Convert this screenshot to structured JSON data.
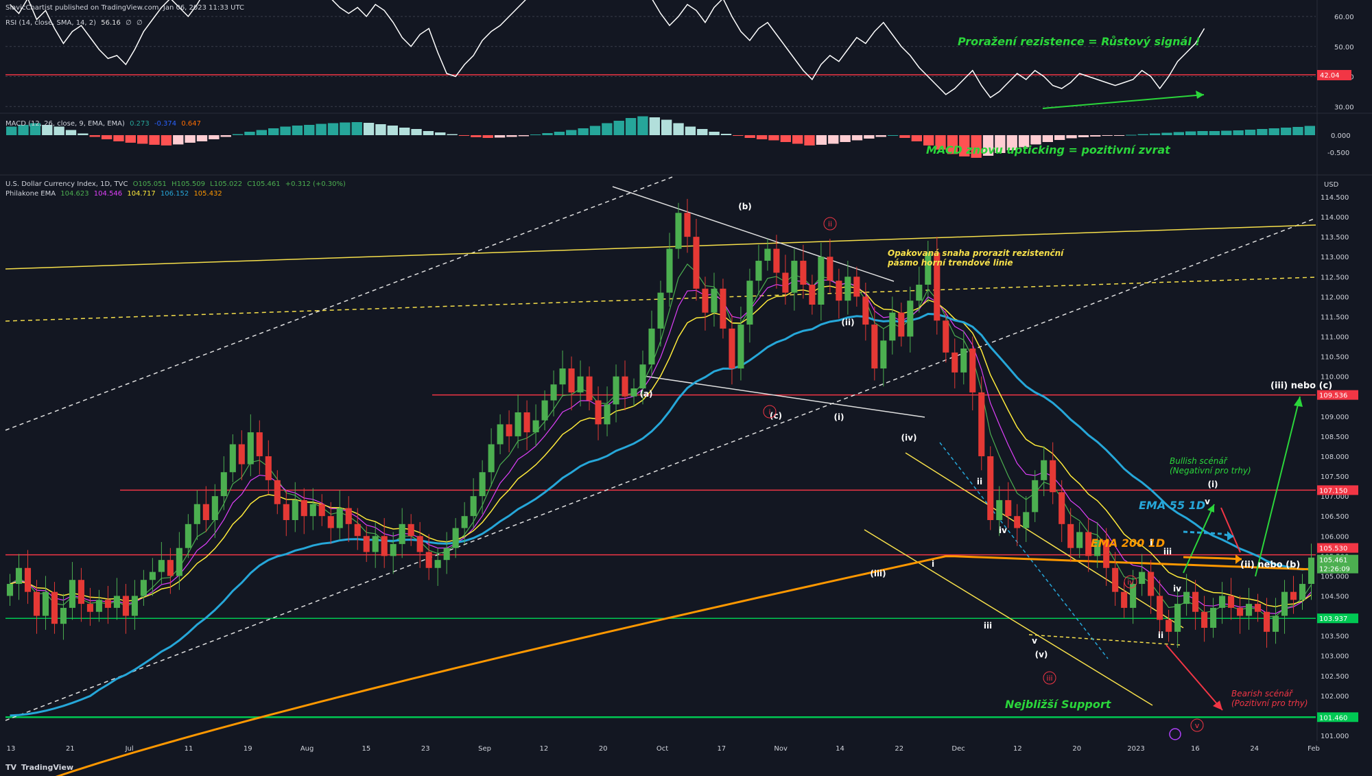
{
  "publisher": "SlavicChartist published on TradingView.com, Jan 06, 2023 11:33 UTC",
  "footer": {
    "logo": "TV",
    "label": "TradingView"
  },
  "colors": {
    "background": "#131722",
    "up": "#4caf50",
    "down": "#e53935",
    "ema_fast": "#4caf50",
    "ema_mid": "#e040fb",
    "ema_slow": "#ffeb3b",
    "ema55": "#26a7d9",
    "ema200": "#ff9800",
    "support_line": "#00c853",
    "resistance_line": "#f23645",
    "trend_yellow": "#f7e04b",
    "note_green": "#2bd63b",
    "note_red": "#f23645"
  },
  "rsi": {
    "legend": [
      "RSI (14, close, SMA, 14, 2)",
      "56.16",
      "∅",
      "∅"
    ],
    "scale": [
      60.0,
      50.0,
      40.0,
      30.0
    ],
    "current_label": "42.04",
    "values": [
      64,
      61,
      66,
      59,
      62,
      56,
      51,
      55,
      57,
      53,
      49,
      46,
      47,
      44,
      49,
      55,
      59,
      63,
      66,
      63,
      60,
      64,
      69,
      70,
      68,
      71,
      72,
      70,
      73,
      71,
      69,
      72,
      70,
      74,
      71,
      69,
      66,
      63,
      61,
      63,
      60,
      64,
      62,
      58,
      53,
      50,
      54,
      56,
      48,
      41,
      40,
      44,
      47,
      52,
      55,
      57,
      60,
      63,
      66,
      68,
      70,
      73,
      75,
      78,
      80,
      83,
      87,
      84,
      82,
      78,
      74,
      70,
      66,
      61,
      57,
      60,
      64,
      62,
      58,
      63,
      66,
      60,
      55,
      52,
      56,
      58,
      54,
      50,
      46,
      42,
      39,
      44,
      47,
      45,
      49,
      53,
      51,
      55,
      58,
      54,
      50,
      47,
      43,
      40,
      37,
      34,
      36,
      39,
      42,
      37,
      33,
      35,
      38,
      41,
      39,
      42,
      40,
      37,
      36,
      38,
      41,
      40,
      39,
      38,
      37,
      38,
      39,
      42,
      40,
      36,
      40,
      45,
      48,
      51,
      56
    ],
    "annotation": "Proražení rezistence = Růstový signál !"
  },
  "macd": {
    "legend": [
      "MACD (12, 26, close, 9, EMA, EMA)",
      "0.273",
      "-0.374",
      "0.647"
    ],
    "scale": [
      "0.000",
      "-0.500"
    ],
    "hist": [
      0.25,
      0.3,
      0.35,
      0.3,
      0.25,
      0.15,
      0.05,
      -0.05,
      -0.12,
      -0.18,
      -0.22,
      -0.25,
      -0.28,
      -0.3,
      -0.27,
      -0.22,
      -0.18,
      -0.12,
      -0.05,
      0.03,
      0.1,
      0.15,
      0.2,
      0.25,
      0.28,
      0.3,
      0.33,
      0.35,
      0.37,
      0.38,
      0.36,
      0.32,
      0.28,
      0.22,
      0.18,
      0.12,
      0.08,
      0.03,
      -0.02,
      -0.06,
      -0.08,
      -0.07,
      -0.05,
      -0.03,
      0.02,
      0.06,
      0.1,
      0.15,
      0.2,
      0.27,
      0.35,
      0.42,
      0.5,
      0.55,
      0.52,
      0.45,
      0.35,
      0.25,
      0.18,
      0.1,
      0.04,
      -0.02,
      -0.08,
      -0.12,
      -0.15,
      -0.2,
      -0.25,
      -0.3,
      -0.28,
      -0.25,
      -0.2,
      -0.15,
      -0.1,
      -0.05,
      0.0,
      -0.08,
      -0.18,
      -0.3,
      -0.42,
      -0.55,
      -0.62,
      -0.66,
      -0.6,
      -0.52,
      -0.44,
      -0.35,
      -0.27,
      -0.2,
      -0.14,
      -0.09,
      -0.06,
      -0.04,
      -0.02,
      -0.01,
      0.01,
      0.03,
      0.05,
      0.07,
      0.09,
      0.11,
      0.12,
      0.12,
      0.13,
      0.14,
      0.16,
      0.18,
      0.2,
      0.22,
      0.24,
      0.27
    ],
    "annotation": "MACD znovu upticking = pozitivní zvrat"
  },
  "main": {
    "legend_title": [
      "U.S. Dollar Currency Index, 1D, TVC",
      "O105.051",
      "H105.509",
      "L105.022",
      "C105.461",
      "+0.312 (+0.30%)"
    ],
    "legend_ema": [
      "Philakone EMA",
      "104.623",
      "104.546",
      "104.717",
      "106.152",
      "105.432"
    ],
    "unit": "USD",
    "price_ticks": [
      "114.500",
      "114.000",
      "113.500",
      "113.000",
      "112.500",
      "112.000",
      "111.500",
      "111.000",
      "110.500",
      "110.000",
      "109.500",
      "109.000",
      "108.500",
      "108.000",
      "107.500",
      "107.000",
      "106.500",
      "106.000",
      "105.500",
      "105.000",
      "104.500",
      "104.000",
      "103.500",
      "103.000",
      "102.500",
      "102.000",
      "101.500",
      "101.000"
    ],
    "price_labels": [
      {
        "text": "109.536",
        "color": "#f23645"
      },
      {
        "text": "107.150",
        "color": "#f23645"
      },
      {
        "text": "105.530",
        "color": "#f23645"
      },
      {
        "text": "105.461",
        "color": "#4caf50"
      },
      {
        "text": "12:26:09",
        "color": "#4caf50"
      },
      {
        "text": "103.937",
        "color": "#00c853"
      },
      {
        "text": "101.460",
        "color": "#00c853"
      }
    ],
    "x_ticks": [
      "13",
      "21",
      "Jul",
      "11",
      "19",
      "Aug",
      "15",
      "23",
      "Sep",
      "12",
      "20",
      "Oct",
      "17",
      "Nov",
      "14",
      "22",
      "Dec",
      "12",
      "20",
      "2023",
      "16",
      "24",
      "Feb"
    ],
    "annotations": {
      "resistance_note_1": "Opakovaná snaha prorazit rezistenční",
      "resistance_note_2": "pásmo horní trendové linie",
      "bull_1": "Bullish scénář",
      "bull_2": "(Negativní pro trhy)",
      "bear_1": "Bearish scénář",
      "bear_2": "(Pozitivní pro trhy)",
      "ema55": "EMA 55 1D",
      "ema200": "EMA 200 1D",
      "support": "Nejbližší Support",
      "target_iii": "(iii) nebo (c)",
      "target_ii": "(ii) nebo (b)"
    },
    "wave_labels": [
      "(b)",
      "(a)",
      "(c)",
      "(ii)",
      "(i)",
      "(iv)",
      "(iii)",
      "(v)",
      "ii",
      "iv",
      "i",
      "iii",
      "v",
      "(i)",
      "iii",
      "i",
      "iv",
      "ii",
      "v"
    ],
    "wave_labels_red": [
      "ii",
      "i",
      "iii",
      "iv",
      "v"
    ]
  },
  "chart_data": {
    "type": "candlestick",
    "symbol": "U.S. Dollar Currency Index, 1D, TVC",
    "ylim": [
      101,
      114.8
    ],
    "closes": [
      104.8,
      105.2,
      104.6,
      104.0,
      104.6,
      103.8,
      104.2,
      104.9,
      104.3,
      104.1,
      104.4,
      104.2,
      104.5,
      104.0,
      104.5,
      104.9,
      105.1,
      105.4,
      105.0,
      105.7,
      106.3,
      106.8,
      106.4,
      107.0,
      107.6,
      108.3,
      107.8,
      108.6,
      108.0,
      107.4,
      106.8,
      106.4,
      106.9,
      106.5,
      106.8,
      106.5,
      106.2,
      106.7,
      106.3,
      106.0,
      105.6,
      106.0,
      105.5,
      105.8,
      106.3,
      106.0,
      105.6,
      105.2,
      105.4,
      105.7,
      106.2,
      106.5,
      107.0,
      107.6,
      108.3,
      108.8,
      108.5,
      109.1,
      108.6,
      108.9,
      109.4,
      109.8,
      110.2,
      109.6,
      110.0,
      109.4,
      108.8,
      109.3,
      110.0,
      109.5,
      109.7,
      110.3,
      111.2,
      112.1,
      113.2,
      114.1,
      113.5,
      112.2,
      111.6,
      112.2,
      111.2,
      110.2,
      111.3,
      112.4,
      112.9,
      113.2,
      112.6,
      112.1,
      112.9,
      112.3,
      111.8,
      113.0,
      112.4,
      111.9,
      112.5,
      112.0,
      111.3,
      110.2,
      110.9,
      111.6,
      111.0,
      111.9,
      112.3,
      113.1,
      111.4,
      110.6,
      110.1,
      110.7,
      109.6,
      108.0,
      106.4,
      106.9,
      106.5,
      106.2,
      106.6,
      107.4,
      107.9,
      107.1,
      106.3,
      105.7,
      106.1,
      105.5,
      105.9,
      105.2,
      104.6,
      104.2,
      104.8,
      105.1,
      104.5,
      103.9,
      103.6,
      104.3,
      104.6,
      104.1,
      103.7,
      104.2,
      104.5,
      104.2,
      104.0,
      104.3,
      104.1,
      103.6,
      104.0,
      104.6,
      104.4,
      104.8,
      105.46
    ]
  }
}
